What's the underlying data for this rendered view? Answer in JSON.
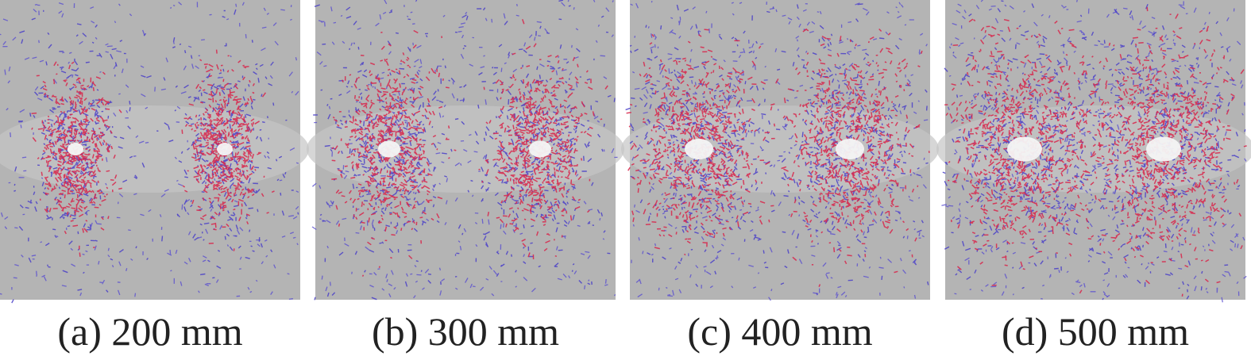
{
  "panels": [
    {
      "caption": "(a) 200 mm"
    },
    {
      "caption": "(b) 300 mm"
    },
    {
      "caption": "(c) 400 mm"
    },
    {
      "caption": "(d) 500 mm"
    }
  ]
}
